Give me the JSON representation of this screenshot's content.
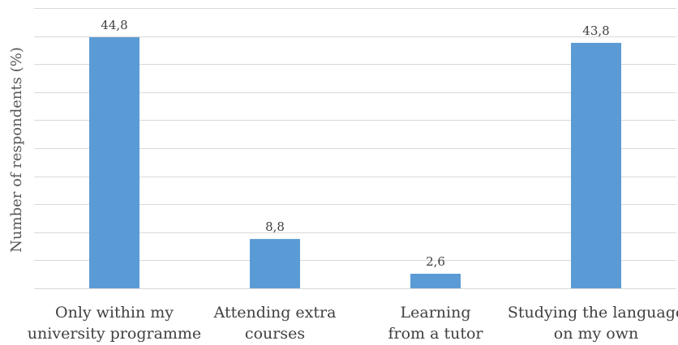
{
  "chart_data": {
    "type": "bar",
    "categories": [
      [
        "Only within my",
        "university programme"
      ],
      [
        "Attending extra",
        "courses"
      ],
      [
        "Learning",
        "from a tutor"
      ],
      [
        "Studying the language",
        "on my own"
      ]
    ],
    "values": [
      44.8,
      8.8,
      2.6,
      43.8
    ],
    "data_labels": [
      "44,8",
      "8,8",
      "2,6",
      "43,8"
    ],
    "ylabel": "Number of respondents (%)",
    "ylim": [
      0,
      50
    ],
    "grid": true,
    "series_color": "#5b9bd5"
  }
}
